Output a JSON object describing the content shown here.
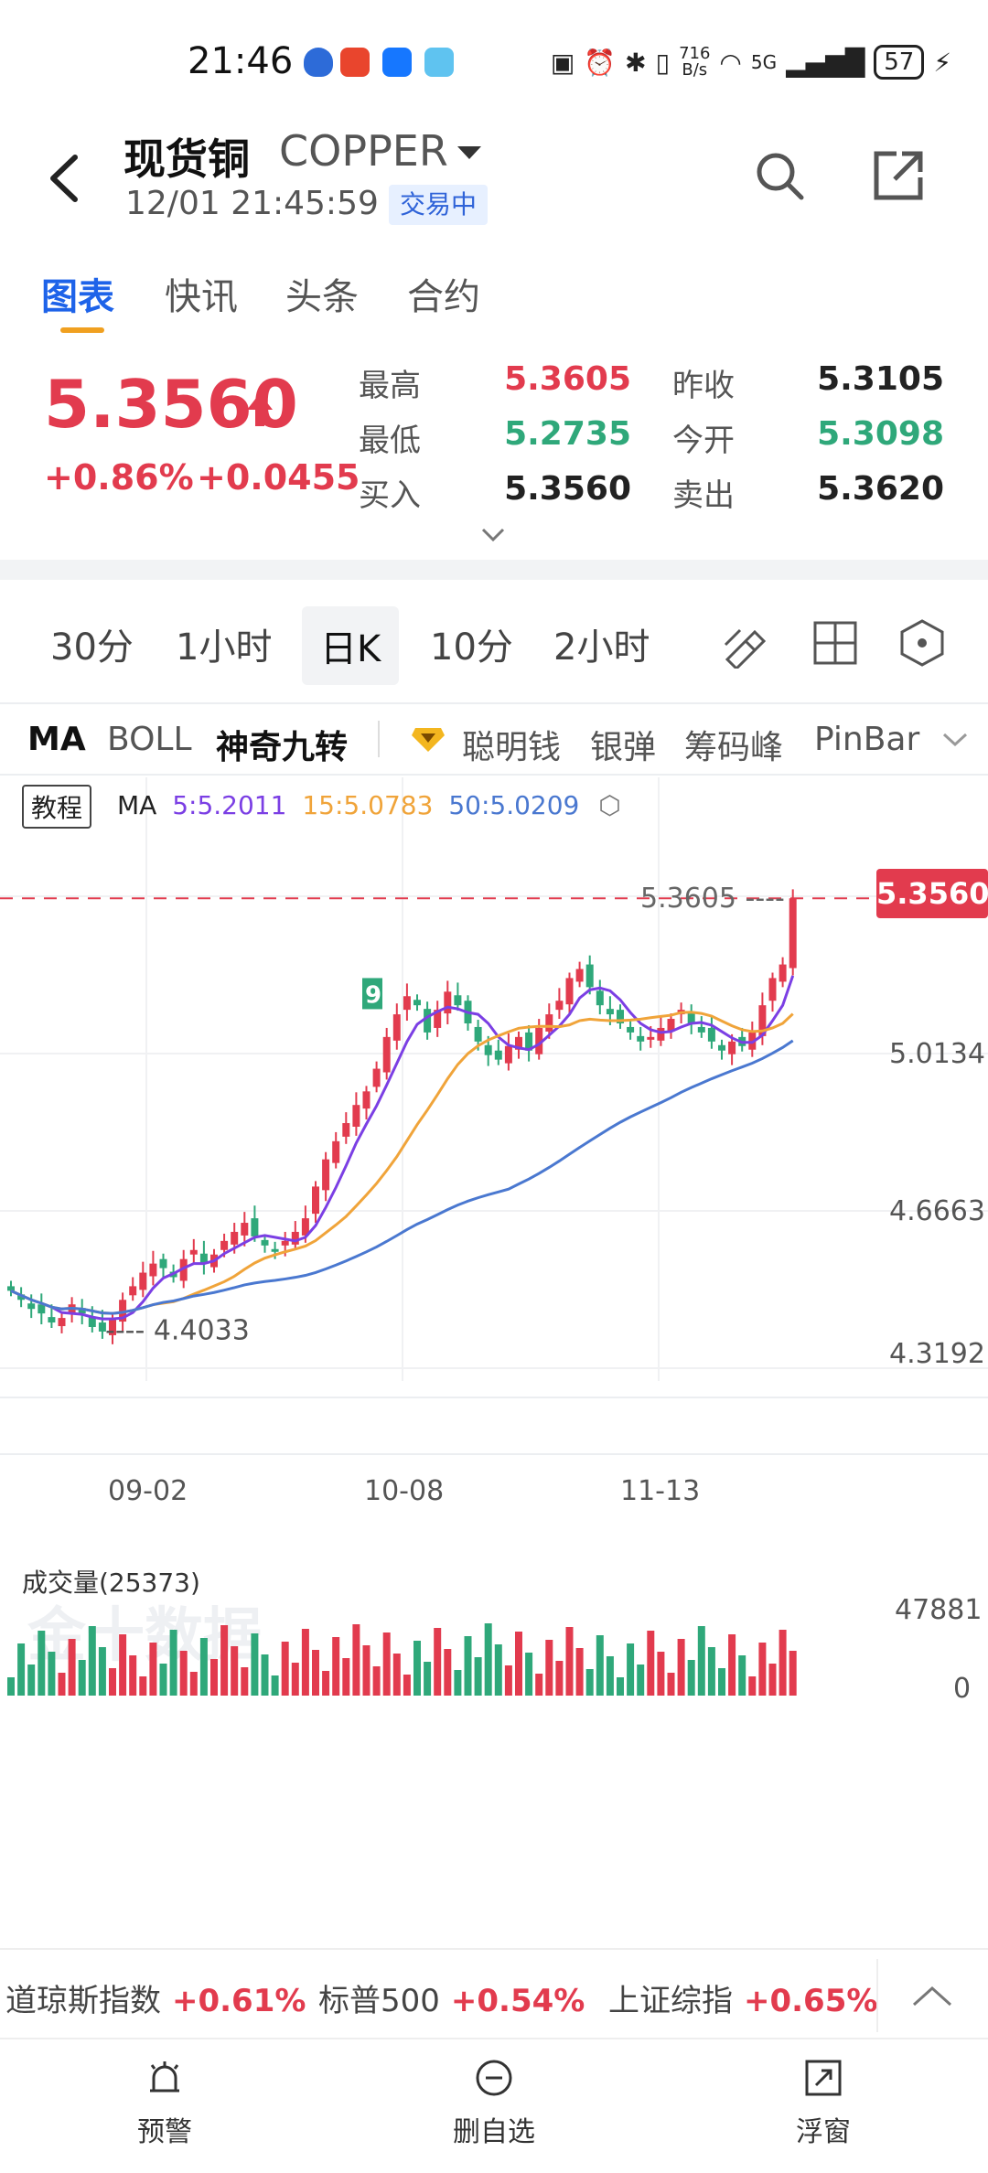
{
  "status_bar": {
    "time": "21:46",
    "net_speed_top": "716",
    "net_speed_unit": "B/s",
    "network": "5G",
    "battery": "57"
  },
  "header": {
    "name": "现货铜",
    "symbol": "COPPER",
    "timestamp": "12/01 21:45:59",
    "trade_status": "交易中"
  },
  "tabs": [
    "图表",
    "快讯",
    "头条",
    "合约"
  ],
  "quote": {
    "price": "5.3560",
    "change_pct": "+0.86%",
    "change_abs": "+0.0455",
    "high_label": "最高",
    "high": "5.3605",
    "low_label": "最低",
    "low": "5.2735",
    "bid_label": "买入",
    "bid": "5.3560",
    "prev_close_label": "昨收",
    "prev_close": "5.3105",
    "open_label": "今开",
    "open": "5.3098",
    "ask_label": "卖出",
    "ask": "5.3620"
  },
  "periods": [
    "30分",
    "1小时",
    "日K",
    "10分",
    "2小时"
  ],
  "indicators": {
    "ma": "MA",
    "boll": "BOLL",
    "nine": "神奇九转",
    "smart": "聪明钱",
    "silver": "银弹",
    "chip": "筹码峰",
    "pinbar": "PinBar"
  },
  "colors": {
    "up": "#e23b4e",
    "down": "#2fa87a",
    "ma5": "#7b3fe4",
    "ma15": "#f0a43a",
    "ma50": "#4a78d0",
    "accent": "#1e63e9"
  },
  "chart": {
    "tutorial_label": "教程",
    "ma_title": "MA",
    "ma5": "5:5.2011",
    "ma15": "15:5.0783",
    "ma50": "50:5.0209",
    "y_labels": [
      "5.3605",
      "5.0134",
      "4.6663",
      "4.3192"
    ],
    "last_price_tag": "5.3560",
    "high_marker": "5.3605",
    "low_marker": "4.4033",
    "x_labels": [
      "09-02",
      "10-08",
      "11-13"
    ],
    "watermark": "金十数据",
    "nine_marker": "9"
  },
  "volume": {
    "title": "成交量(25373)",
    "max_label": "47881",
    "zero_label": "0"
  },
  "ticker": [
    {
      "name": "道琼斯指数",
      "pct": "+0.61%"
    },
    {
      "name": "标普500",
      "pct": "+0.54%"
    },
    {
      "name": "上证综指",
      "pct": "+0.65%"
    }
  ],
  "bottom_nav": [
    "预警",
    "删自选",
    "浮窗"
  ],
  "chart_data": {
    "type": "candlestick",
    "series": [
      {
        "name": "MA5",
        "value": 5.2011
      },
      {
        "name": "MA15",
        "value": 5.0783
      },
      {
        "name": "MA50",
        "value": 5.0209
      }
    ],
    "y_ticks": [
      5.3605,
      5.0134,
      4.6663,
      4.3192
    ],
    "x_ticks": [
      "09-02",
      "10-08",
      "11-13"
    ],
    "period_high": 5.3605,
    "period_low": 4.4033,
    "last": 5.356,
    "volume_max": 47881
  }
}
